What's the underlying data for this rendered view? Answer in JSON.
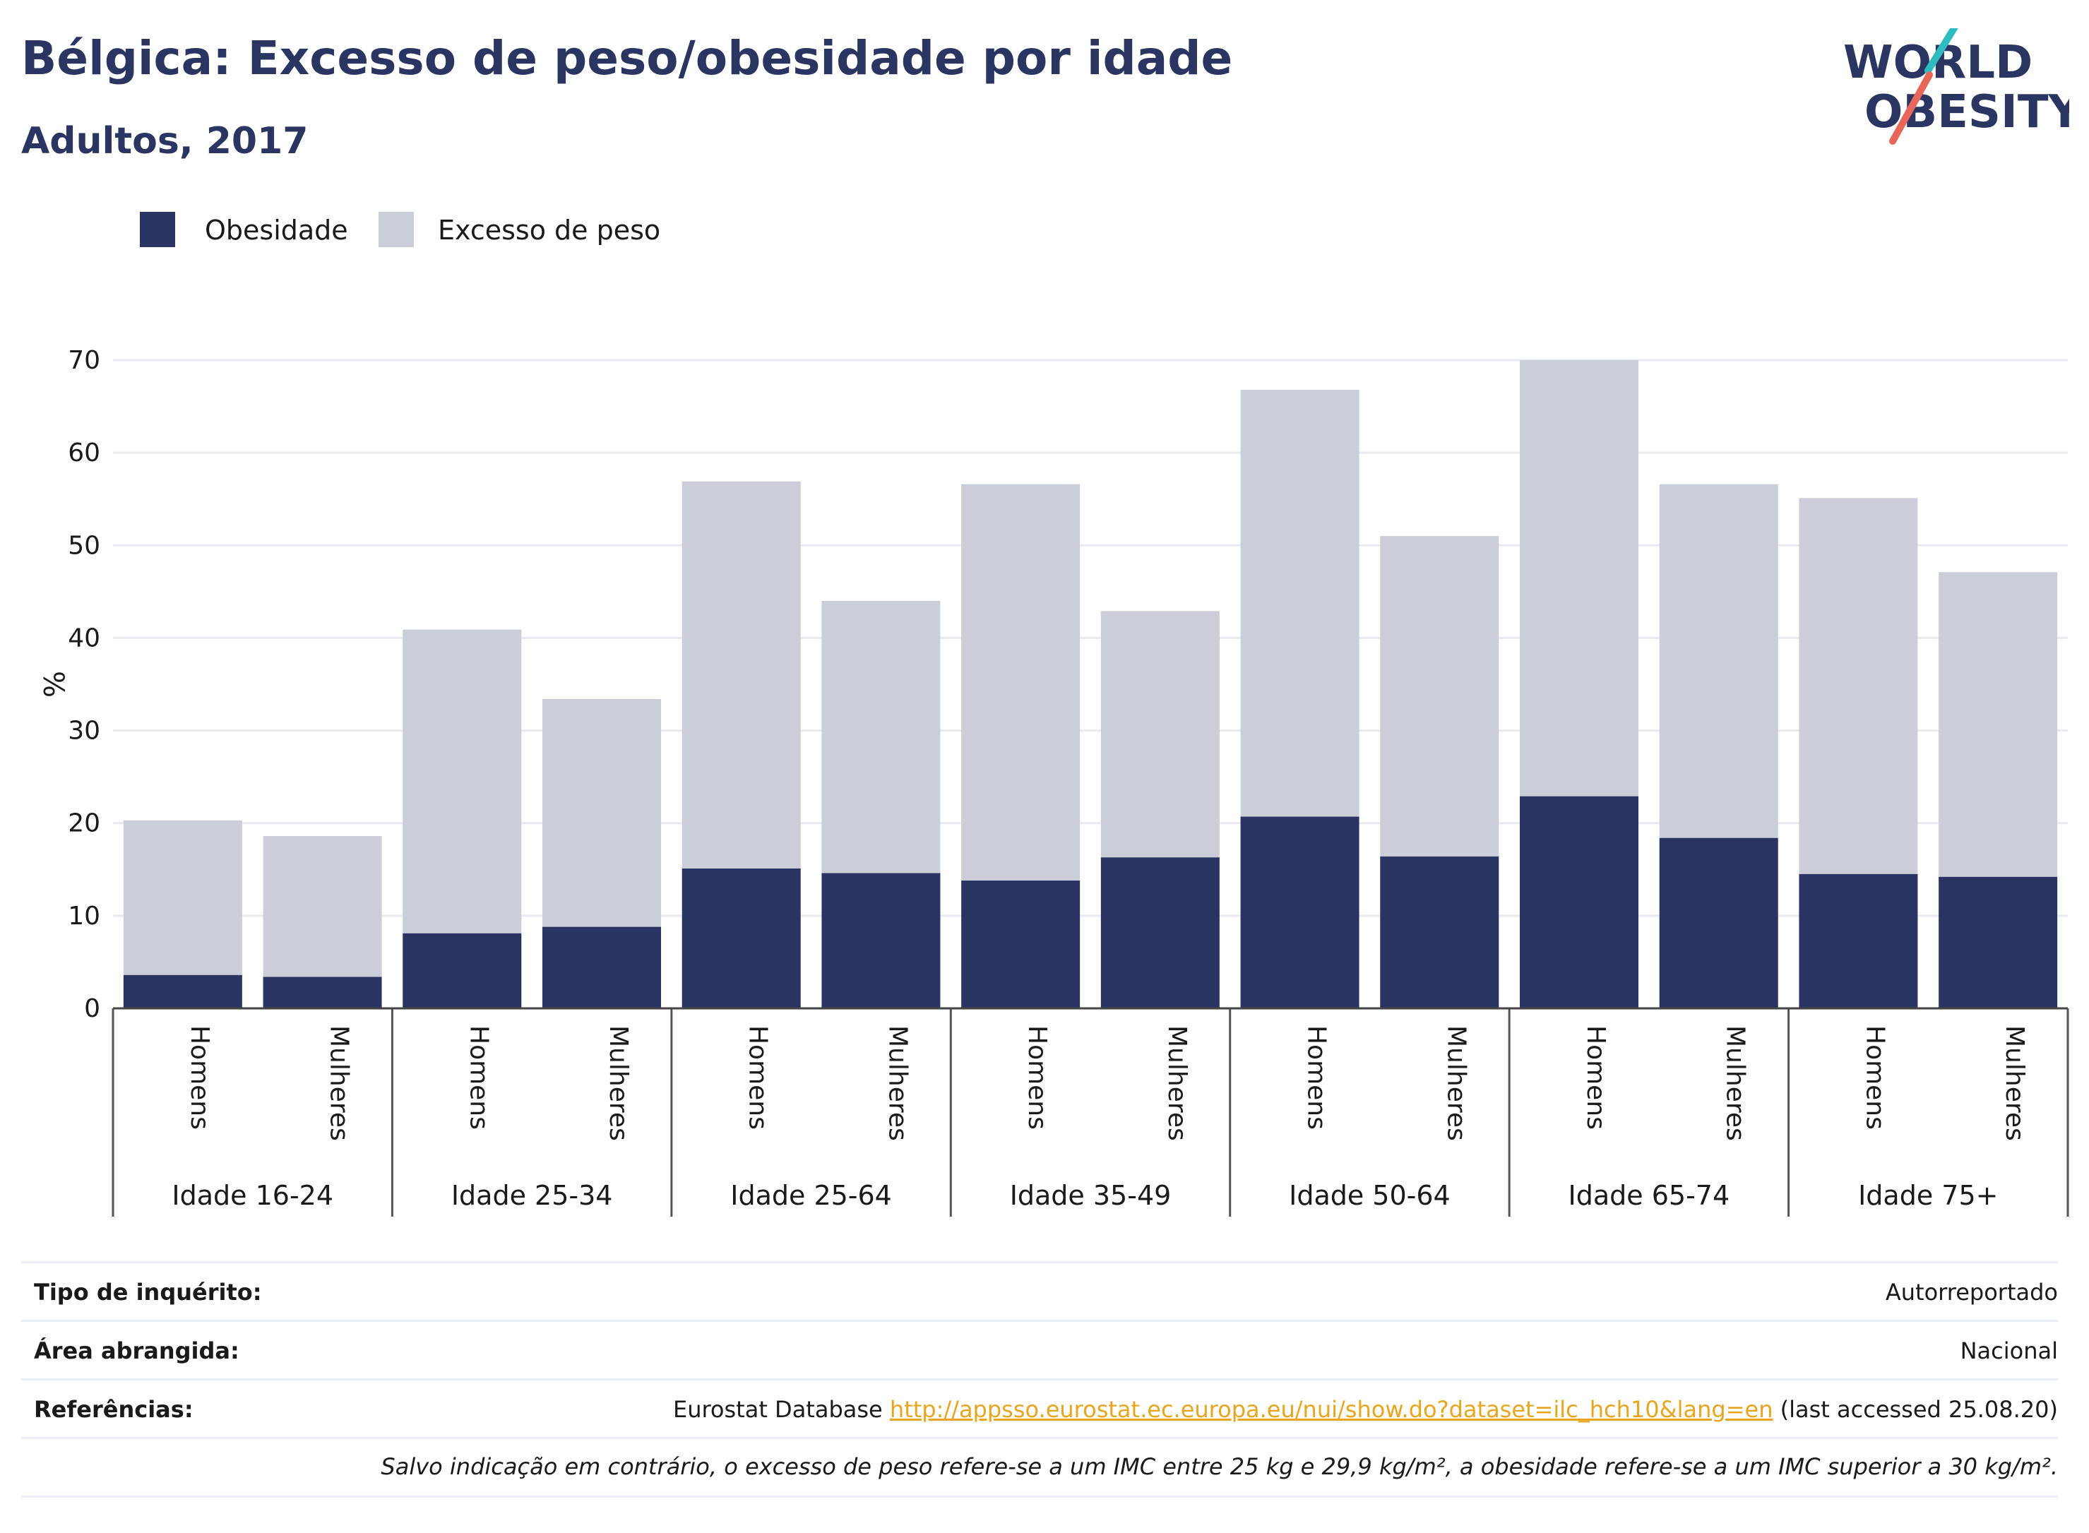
{
  "header": {
    "title": "Bélgica: Excesso de peso/obesidade por idade",
    "subtitle": "Adultos, 2017"
  },
  "logo": {
    "line1": "WORLD",
    "line2": "OBESITY",
    "colors": {
      "text": "#2a3562",
      "slash_red": "#e8675a",
      "slash_teal": "#2fbcc0"
    }
  },
  "legend": {
    "obesity_label": "Obesidade",
    "overweight_label": "Excesso de peso",
    "obesity_color": "#293462",
    "overweight_color": "#cbcdd8"
  },
  "chart_data": {
    "type": "bar",
    "stacked": true,
    "ylabel": "%",
    "ylim": [
      0,
      70
    ],
    "yticks": [
      0,
      10,
      20,
      30,
      40,
      50,
      60,
      70
    ],
    "grid": true,
    "legend_position": "top-left",
    "groups": [
      {
        "label": "Idade 16-24",
        "bars": [
          {
            "label": "Homens",
            "obesity": 3.6,
            "overweight": 16.7
          },
          {
            "label": "Mulheres",
            "obesity": 3.4,
            "overweight": 15.2
          }
        ]
      },
      {
        "label": "Idade 25-34",
        "bars": [
          {
            "label": "Homens",
            "obesity": 8.1,
            "overweight": 32.8
          },
          {
            "label": "Mulheres",
            "obesity": 8.8,
            "overweight": 24.6
          }
        ]
      },
      {
        "label": "Idade 25-64",
        "bars": [
          {
            "label": "Homens",
            "obesity": 15.1,
            "overweight": 41.8
          },
          {
            "label": "Mulheres",
            "obesity": 14.6,
            "overweight": 29.4
          }
        ]
      },
      {
        "label": "Idade 35-49",
        "bars": [
          {
            "label": "Homens",
            "obesity": 13.8,
            "overweight": 42.8
          },
          {
            "label": "Mulheres",
            "obesity": 16.3,
            "overweight": 26.6
          }
        ]
      },
      {
        "label": "Idade 50-64",
        "bars": [
          {
            "label": "Homens",
            "obesity": 20.7,
            "overweight": 46.1
          },
          {
            "label": "Mulheres",
            "obesity": 16.4,
            "overweight": 34.6
          }
        ]
      },
      {
        "label": "Idade 65-74",
        "bars": [
          {
            "label": "Homens",
            "obesity": 22.9,
            "overweight": 47.1
          },
          {
            "label": "Mulheres",
            "obesity": 18.4,
            "overweight": 38.2
          }
        ]
      },
      {
        "label": "Idade 75+",
        "bars": [
          {
            "label": "Homens",
            "obesity": 14.5,
            "overweight": 40.6
          },
          {
            "label": "Mulheres",
            "obesity": 14.2,
            "overweight": 32.9
          }
        ]
      }
    ]
  },
  "info": {
    "survey_label": "Tipo de inquérito:",
    "survey_value": "Autorreportado",
    "area_label": "Área abrangida:",
    "area_value": "Nacional",
    "ref_label": "Referências:",
    "ref_prefix": "Eurostat Database ",
    "ref_link": "http://appsso.eurostat.ec.europa.eu/nui/show.do?dataset=ilc_hch10&lang=en",
    "ref_suffix": " (last accessed 25.08.20)",
    "note": "Salvo indicação em contrário, o excesso de peso refere-se a um IMC entre 25 kg e 29,9 kg/m², a obesidade refere-se a um IMC superior a 30 kg/m²."
  }
}
